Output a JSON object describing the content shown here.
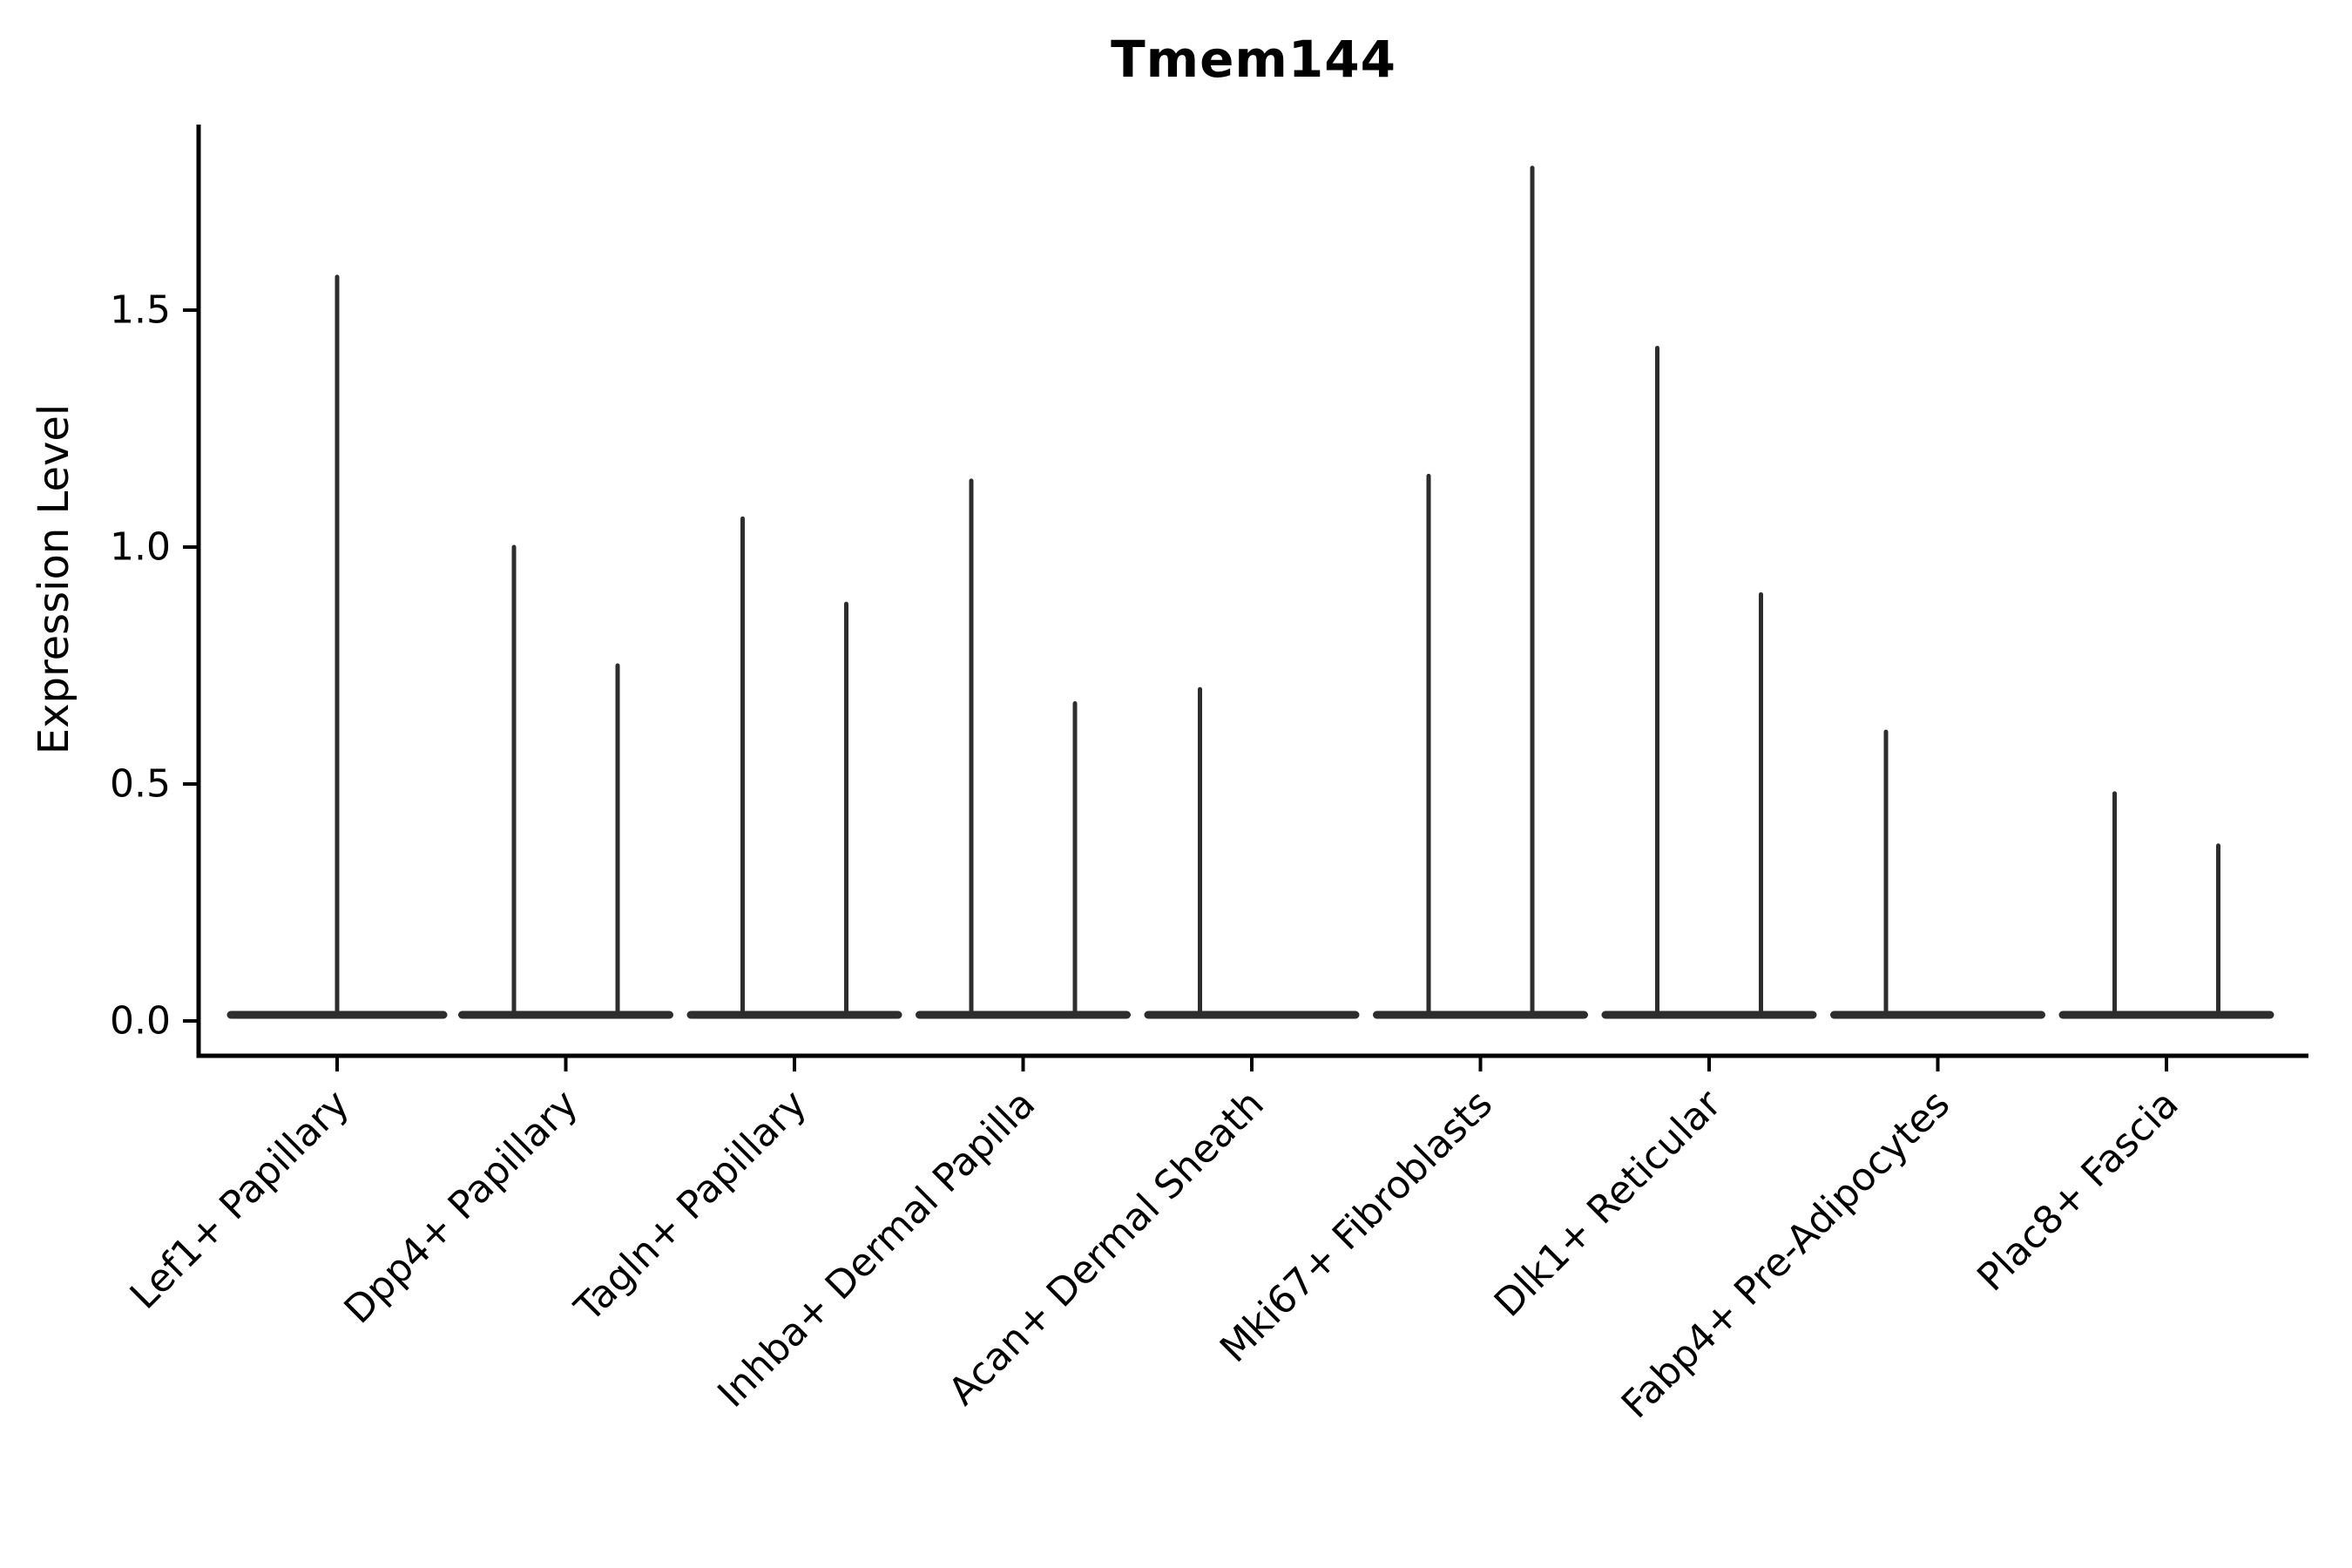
{
  "chart_data": {
    "type": "violin",
    "title": "Tmem144",
    "ylabel": "Expression Level",
    "y_tick_labels": [
      "0.0",
      "0.5",
      "1.0",
      "1.5"
    ],
    "ylim": [
      0.0,
      1.9
    ],
    "grid": false,
    "legend": null,
    "categories": [
      {
        "label": "Lef1+ Papillary",
        "violin_maxima": [
          1.57
        ]
      },
      {
        "label": "Dpp4+ Papillary",
        "violin_maxima": [
          1.0,
          0.75
        ]
      },
      {
        "label": "Tagln+ Papillary",
        "violin_maxima": [
          1.06,
          0.88
        ]
      },
      {
        "label": "Inhba+ Dermal Papilla",
        "violin_maxima": [
          1.14,
          0.67
        ]
      },
      {
        "label": "Acan+ Dermal Sheath",
        "violin_maxima": [
          0.7,
          0.0
        ]
      },
      {
        "label": "Mki67+ Fibroblasts",
        "violin_maxima": [
          1.15,
          1.8
        ]
      },
      {
        "label": "Dlk1+ Reticular",
        "violin_maxima": [
          1.42,
          0.9
        ]
      },
      {
        "label": "Fabp4+ Pre-Adipocytes",
        "violin_maxima": [
          0.61,
          0.0
        ]
      },
      {
        "label": "Plac8+ Fascia",
        "violin_maxima": [
          0.48,
          0.37
        ]
      }
    ],
    "colors": {
      "violin_line": "#2d2d2d",
      "axis": "#000000",
      "text": "#000000",
      "background": "#ffffff"
    }
  }
}
